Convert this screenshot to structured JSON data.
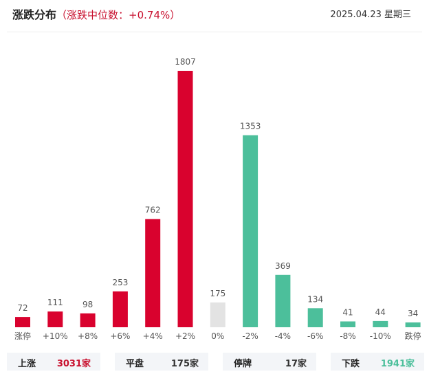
{
  "header": {
    "title": "涨跌分布",
    "subtitle": "（涨跌中位数：+0.74%）",
    "date": "2025.04.23 星期三"
  },
  "colors": {
    "up": "#d9022e",
    "down": "#4cbf9b",
    "flat": "#e3e3e3",
    "title_accent": "#c8102e"
  },
  "summary": [
    {
      "label": "上涨",
      "value": "3031家",
      "color": "#c8102e"
    },
    {
      "label": "平盘",
      "value": "175家",
      "color": "#333333"
    },
    {
      "label": "停牌",
      "value": "17家",
      "color": "#333333"
    },
    {
      "label": "下跌",
      "value": "1941家",
      "color": "#4cbf9b"
    }
  ],
  "chart_data": {
    "type": "bar",
    "title": "涨跌分布",
    "categories": [
      "涨停",
      "+10%",
      "+8%",
      "+6%",
      "+4%",
      "+2%",
      "0%",
      "-2%",
      "-4%",
      "-6%",
      "-8%",
      "-10%",
      "跌停"
    ],
    "values": [
      72,
      111,
      98,
      253,
      762,
      1807,
      175,
      1353,
      369,
      134,
      41,
      44,
      34
    ],
    "bar_colors": [
      "up",
      "up",
      "up",
      "up",
      "up",
      "up",
      "flat",
      "down",
      "down",
      "down",
      "down",
      "down",
      "down"
    ],
    "ylim": [
      0,
      1807
    ],
    "grid": false,
    "legend": "none"
  }
}
